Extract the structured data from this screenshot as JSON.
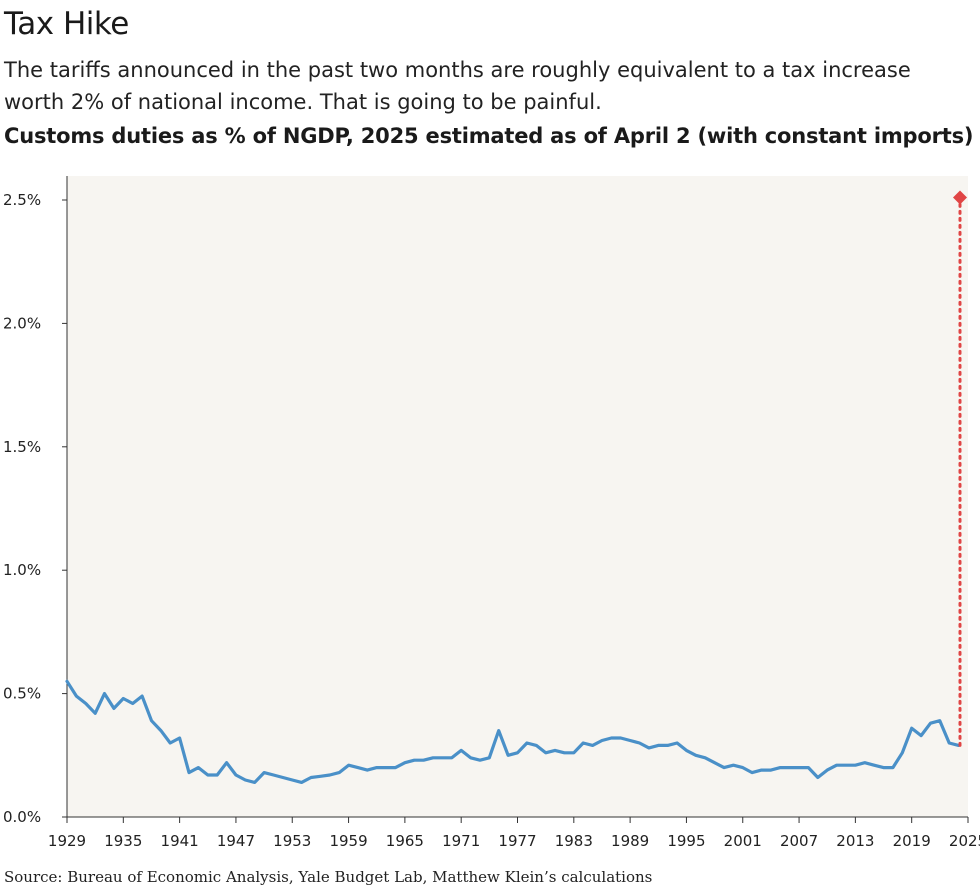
{
  "header": {
    "title": "Tax Hike",
    "subtitle": "The tariffs announced in the past two months are roughly equivalent to a tax increase worth 2% of national income. That is going to be painful.",
    "chart_title": "Customs duties as % of NGDP, 2025 estimated as of April 2 (with constant imports)"
  },
  "footer": {
    "source": "Source: Bureau of Economic Analysis, Yale Budget Lab, Matthew Klein’s calculations"
  },
  "chart_data": {
    "type": "line",
    "title": "Customs duties as % of NGDP, 2025 estimated as of April 2 (with constant imports)",
    "xlabel": "",
    "ylabel": "",
    "xlim": [
      1929,
      2025
    ],
    "ylim": [
      0,
      2.6
    ],
    "y_ticks": [
      0,
      0.5,
      1.0,
      1.5,
      2.0,
      2.5
    ],
    "y_tick_labels": [
      "0.0%",
      "0.5%",
      "1.0%",
      "1.5%",
      "2.0%",
      "2.5%"
    ],
    "x_ticks": [
      1929,
      1935,
      1941,
      1947,
      1953,
      1959,
      1965,
      1971,
      1977,
      1983,
      1989,
      1995,
      2001,
      2007,
      2013,
      2019,
      2025
    ],
    "grid": false,
    "colors": {
      "line": "#4a90c8",
      "estimate": "#e04545",
      "plot_bg": "#f7f5f1"
    },
    "series": [
      {
        "years": [
          1929,
          1930,
          1931,
          1932,
          1933,
          1934,
          1935,
          1936,
          1937,
          1938,
          1939,
          1940,
          1941,
          1942,
          1943,
          1944,
          1945,
          1946,
          1947,
          1948,
          1949,
          1950,
          1951,
          1952,
          1953,
          1954,
          1955,
          1956,
          1957,
          1958,
          1959,
          1960,
          1961,
          1962,
          1963,
          1964,
          1965,
          1966,
          1967,
          1968,
          1969,
          1970,
          1971,
          1972,
          1973,
          1974,
          1975,
          1976,
          1977,
          1978,
          1979,
          1980,
          1981,
          1982,
          1983,
          1984,
          1985,
          1986,
          1987,
          1988,
          1989,
          1990,
          1991,
          1992,
          1993,
          1994,
          1995,
          1996,
          1997,
          1998,
          1999,
          2000,
          2001,
          2002,
          2003,
          2004,
          2005,
          2006,
          2007,
          2008,
          2009,
          2010,
          2011,
          2012,
          2013,
          2014,
          2015,
          2016,
          2017,
          2018,
          2019,
          2020,
          2021,
          2022,
          2023,
          2024
        ],
        "values": [
          0.55,
          0.49,
          0.46,
          0.42,
          0.5,
          0.44,
          0.48,
          0.46,
          0.49,
          0.39,
          0.35,
          0.3,
          0.32,
          0.18,
          0.2,
          0.17,
          0.17,
          0.22,
          0.17,
          0.15,
          0.14,
          0.18,
          0.17,
          0.16,
          0.15,
          0.14,
          0.16,
          0.165,
          0.17,
          0.18,
          0.21,
          0.2,
          0.19,
          0.2,
          0.2,
          0.2,
          0.22,
          0.23,
          0.23,
          0.24,
          0.24,
          0.24,
          0.27,
          0.24,
          0.23,
          0.24,
          0.35,
          0.25,
          0.26,
          0.3,
          0.29,
          0.26,
          0.27,
          0.26,
          0.26,
          0.3,
          0.29,
          0.31,
          0.32,
          0.32,
          0.31,
          0.3,
          0.28,
          0.29,
          0.29,
          0.3,
          0.27,
          0.25,
          0.24,
          0.22,
          0.2,
          0.21,
          0.2,
          0.18,
          0.19,
          0.19,
          0.2,
          0.2,
          0.2,
          0.2,
          0.16,
          0.19,
          0.21,
          0.21,
          0.21,
          0.22,
          0.21,
          0.2,
          0.2,
          0.26,
          0.36,
          0.33,
          0.38,
          0.39,
          0.3,
          0.29
        ]
      }
    ],
    "estimate": {
      "year": 2025,
      "value": 2.51
    }
  }
}
